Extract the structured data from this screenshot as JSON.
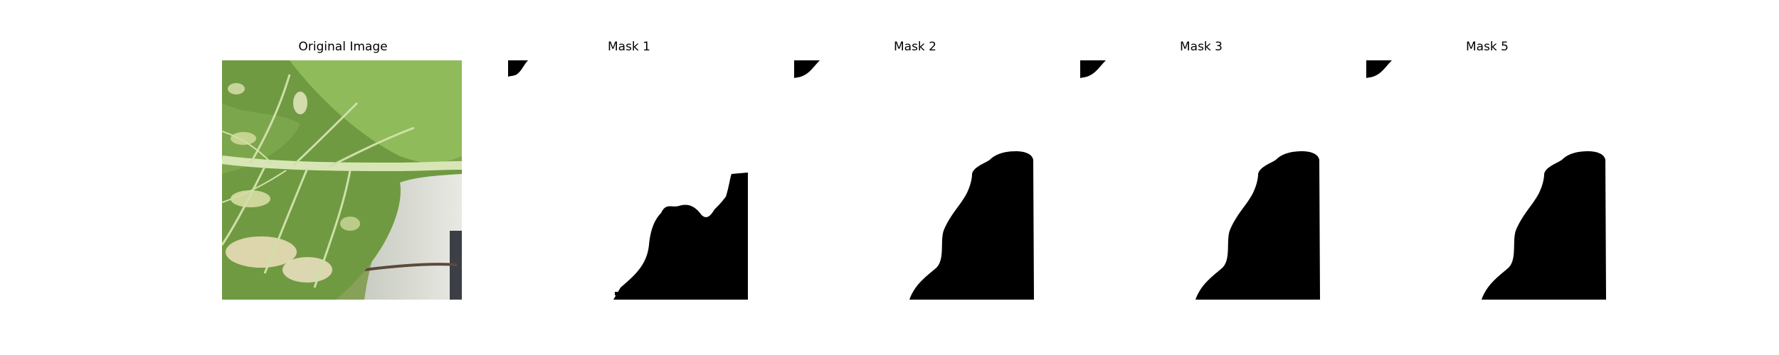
{
  "panels": [
    {
      "title": "Original Image",
      "kind": "photo"
    },
    {
      "title": "Mask 1",
      "kind": "mask"
    },
    {
      "title": "Mask 2",
      "kind": "mask"
    },
    {
      "title": "Mask 3",
      "kind": "mask"
    },
    {
      "title": "Mask 5",
      "kind": "mask"
    }
  ]
}
